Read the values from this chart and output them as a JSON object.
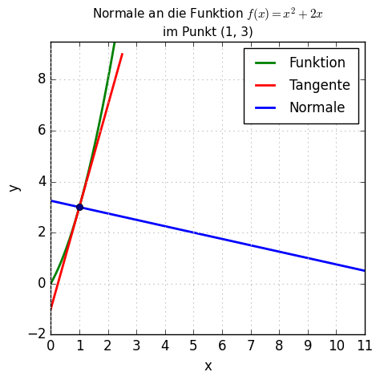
{
  "title_line1": "Normale an die Funktion $f(x) = x^2 + 2x$",
  "title_line2": "im Punkt (1, 3)",
  "xlabel": "x",
  "ylabel": "y",
  "xlim": [
    0,
    11
  ],
  "ylim": [
    -2,
    9.5
  ],
  "xticks": [
    0,
    1,
    2,
    3,
    4,
    5,
    6,
    7,
    8,
    9,
    10,
    11
  ],
  "yticks": [
    -2,
    0,
    2,
    4,
    6,
    8
  ],
  "point_x": 1,
  "point_y": 3,
  "function_color": "#008000",
  "tangent_color": "#ff0000",
  "normal_color": "#0000ff",
  "point_color": "#000080",
  "legend_labels": [
    "Funktion",
    "Tangente",
    "Normale"
  ],
  "grid_color": "#bbbbbb",
  "figsize": [
    4.74,
    4.74
  ],
  "dpi": 100,
  "background_color": "#ffffff",
  "title_fontsize": 11,
  "axis_fontsize": 12,
  "legend_fontsize": 12,
  "linewidth": 2.0
}
